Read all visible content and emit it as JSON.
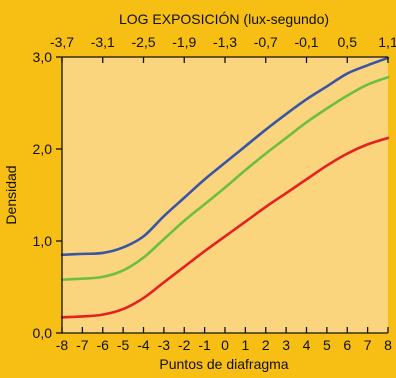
{
  "chart_data": {
    "type": "line",
    "title": "LOG EXPOSICIÓN (lux-segundo)",
    "xlabel": "Puntos de diafragma",
    "ylabel": "Densidad",
    "xlim": [
      -8,
      8
    ],
    "ylim": [
      0,
      3
    ],
    "x_ticks": [
      -8,
      -7,
      -6,
      -5,
      -4,
      -3,
      -2,
      -1,
      0,
      1,
      2,
      3,
      4,
      5,
      6,
      7,
      8
    ],
    "y_ticks": [
      0,
      1,
      2,
      3
    ],
    "y_tick_labels": [
      "0,0",
      "1,0",
      "2,0",
      "3,0"
    ],
    "top_axis": {
      "label": "LOG EXPOSICIÓN (lux-segundo)",
      "tick_labels": [
        "-3,7",
        "-3,1",
        "-2,5",
        "-1,9",
        "-1,3",
        "-0,7",
        "-0,1",
        "0,5",
        "1,1"
      ],
      "tick_positions": [
        -8,
        -6,
        -4,
        -2,
        0,
        2,
        4,
        6,
        8
      ]
    },
    "x": [
      -8,
      -7,
      -6,
      -5,
      -4,
      -3,
      -2,
      -1,
      0,
      1,
      2,
      3,
      4,
      5,
      6,
      7,
      8
    ],
    "series": [
      {
        "color": "#3A55A4",
        "values": [
          0.85,
          0.86,
          0.87,
          0.93,
          1.05,
          1.27,
          1.47,
          1.67,
          1.85,
          2.03,
          2.21,
          2.38,
          2.54,
          2.68,
          2.82,
          2.91,
          2.99
        ]
      },
      {
        "color": "#6CBE45",
        "values": [
          0.58,
          0.59,
          0.61,
          0.68,
          0.82,
          1.02,
          1.22,
          1.4,
          1.58,
          1.77,
          1.95,
          2.12,
          2.29,
          2.44,
          2.58,
          2.7,
          2.78
        ]
      },
      {
        "color": "#E5201E",
        "values": [
          0.17,
          0.18,
          0.2,
          0.26,
          0.38,
          0.55,
          0.72,
          0.89,
          1.05,
          1.21,
          1.37,
          1.52,
          1.67,
          1.82,
          1.95,
          2.05,
          2.12
        ]
      }
    ],
    "grid": false,
    "colors": {
      "background": "#F7BE14",
      "plot_area": "#FAD57E",
      "axes": "#111111"
    }
  }
}
